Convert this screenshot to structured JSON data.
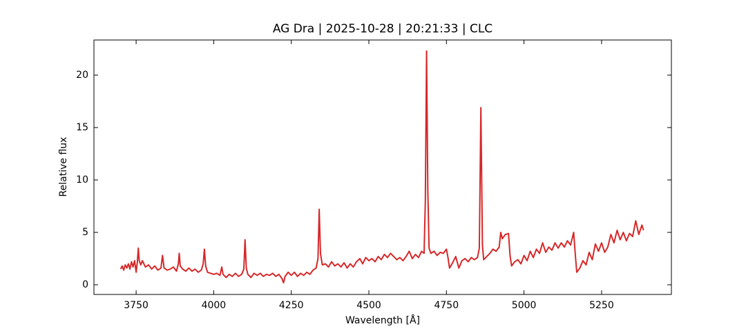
{
  "chart_data": {
    "type": "line",
    "title": "AG Dra | 2025-10-28 | 20:21:33 | CLC",
    "x_label": "Wavelength [Å]",
    "y_label": "Relative flux",
    "color": "#d62728",
    "x": [
      3700,
      3705,
      3710,
      3715,
      3720,
      3725,
      3730,
      3735,
      3740,
      3745,
      3750,
      3754,
      3757,
      3760,
      3765,
      3770,
      3780,
      3790,
      3800,
      3810,
      3820,
      3830,
      3835,
      3840,
      3850,
      3860,
      3870,
      3880,
      3886,
      3889,
      3892,
      3900,
      3910,
      3920,
      3930,
      3940,
      3950,
      3960,
      3966,
      3970,
      3974,
      3980,
      3990,
      4000,
      4010,
      4020,
      4026,
      4030,
      4040,
      4050,
      4060,
      4070,
      4080,
      4090,
      4097,
      4101,
      4105,
      4110,
      4120,
      4130,
      4140,
      4150,
      4160,
      4170,
      4180,
      4190,
      4200,
      4210,
      4220,
      4225,
      4230,
      4240,
      4250,
      4260,
      4270,
      4280,
      4290,
      4300,
      4310,
      4320,
      4330,
      4336,
      4340,
      4344,
      4350,
      4360,
      4370,
      4380,
      4390,
      4400,
      4410,
      4420,
      4430,
      4440,
      4450,
      4460,
      4471,
      4480,
      4490,
      4500,
      4510,
      4520,
      4530,
      4540,
      4550,
      4560,
      4570,
      4580,
      4590,
      4600,
      4610,
      4620,
      4630,
      4640,
      4650,
      4660,
      4670,
      4678,
      4682,
      4686,
      4690,
      4694,
      4700,
      4710,
      4720,
      4730,
      4740,
      4750,
      4755,
      4760,
      4770,
      4780,
      4790,
      4800,
      4810,
      4820,
      4830,
      4840,
      4850,
      4856,
      4861,
      4866,
      4870,
      4880,
      4890,
      4900,
      4910,
      4920,
      4925,
      4930,
      4940,
      4950,
      4955,
      4960,
      4970,
      4980,
      4990,
      5000,
      5010,
      5020,
      5030,
      5040,
      5050,
      5060,
      5070,
      5080,
      5090,
      5100,
      5110,
      5120,
      5130,
      5140,
      5150,
      5160,
      5165,
      5170,
      5180,
      5190,
      5200,
      5210,
      5220,
      5230,
      5240,
      5250,
      5260,
      5270,
      5280,
      5290,
      5300,
      5310,
      5320,
      5330,
      5340,
      5350,
      5360,
      5370,
      5380,
      5385
    ],
    "values": [
      1.5,
      1.8,
      1.4,
      1.9,
      1.6,
      2.0,
      1.5,
      2.2,
      1.7,
      2.3,
      1.2,
      2.2,
      3.5,
      2.3,
      1.9,
      2.3,
      1.7,
      1.9,
      1.5,
      1.8,
      1.4,
      1.6,
      2.8,
      1.6,
      1.4,
      1.5,
      1.7,
      1.3,
      2.0,
      3.0,
      1.8,
      1.5,
      1.3,
      1.6,
      1.3,
      1.5,
      1.2,
      1.4,
      2.0,
      3.4,
      1.8,
      1.2,
      1.1,
      1.0,
      1.1,
      0.9,
      1.7,
      1.0,
      0.7,
      1.0,
      0.8,
      1.1,
      0.8,
      1.0,
      1.5,
      4.3,
      1.6,
      1.0,
      0.7,
      1.1,
      0.9,
      1.1,
      0.8,
      1.0,
      0.9,
      1.1,
      0.8,
      1.0,
      0.6,
      0.2,
      0.8,
      1.2,
      0.9,
      1.2,
      0.8,
      1.1,
      0.9,
      1.2,
      1.0,
      1.4,
      1.6,
      2.5,
      7.2,
      3.0,
      1.9,
      2.0,
      1.7,
      2.2,
      1.8,
      2.0,
      1.7,
      2.1,
      1.6,
      2.0,
      1.7,
      2.2,
      2.5,
      2.0,
      2.6,
      2.3,
      2.5,
      2.2,
      2.7,
      2.4,
      2.9,
      2.6,
      3.0,
      2.7,
      2.4,
      2.6,
      2.3,
      2.7,
      3.2,
      2.5,
      2.9,
      2.6,
      3.2,
      3.0,
      8.0,
      22.3,
      9.0,
      3.5,
      3.0,
      3.2,
      2.8,
      3.1,
      3.0,
      3.4,
      2.6,
      1.6,
      2.1,
      2.7,
      1.6,
      2.3,
      2.5,
      2.2,
      2.6,
      2.4,
      2.6,
      3.5,
      16.9,
      3.8,
      2.4,
      2.7,
      3.0,
      3.4,
      3.2,
      3.6,
      5.0,
      4.4,
      4.8,
      4.9,
      2.8,
      1.8,
      2.2,
      2.4,
      2.0,
      2.8,
      2.3,
      3.2,
      2.6,
      3.4,
      3.0,
      4.0,
      3.1,
      3.6,
      3.3,
      4.0,
      3.5,
      4.0,
      3.6,
      4.2,
      3.8,
      5.0,
      3.0,
      1.2,
      1.6,
      2.3,
      1.9,
      3.1,
      2.4,
      3.9,
      3.2,
      4.0,
      3.1,
      3.6,
      4.8,
      4.0,
      5.2,
      4.3,
      5.0,
      4.2,
      4.9,
      4.6,
      6.1,
      4.8,
      5.7,
      5.2
    ],
    "xlim": [
      3614,
      5475
    ],
    "ylim": [
      -0.92,
      23.35
    ],
    "xticks": [
      3750,
      4000,
      4250,
      4500,
      4750,
      5000,
      5250
    ],
    "yticks": [
      0,
      5,
      10,
      15,
      20
    ]
  }
}
